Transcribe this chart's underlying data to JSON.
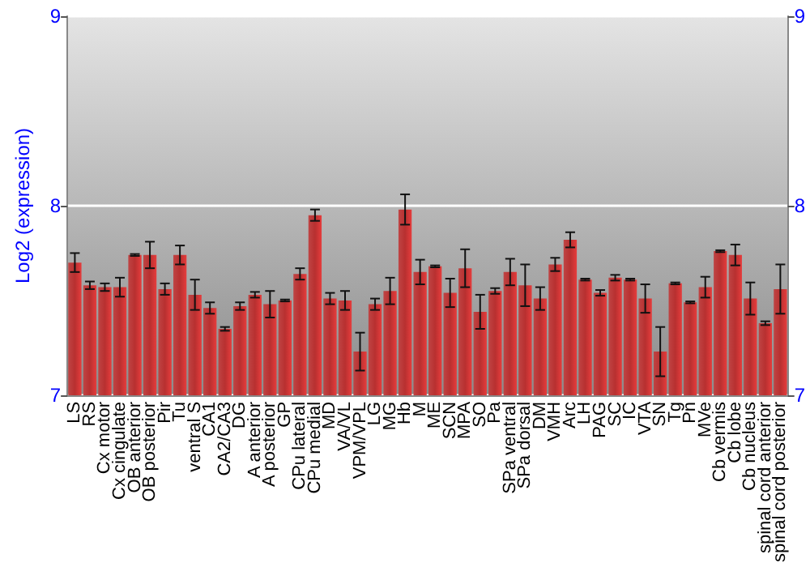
{
  "chart_data": {
    "type": "bar",
    "ylabel": "Log2 (expression)",
    "categories": [
      "LS",
      "RS",
      "Cx motor",
      "Cx cingulate",
      "OB anterior",
      "OB posterior",
      "Pir",
      "Tu",
      "ventral S",
      "CA1",
      "CA2/CA3",
      "DG",
      "A anterior",
      "A posterior",
      "GP",
      "CPu lateral",
      "CPu medial",
      "MD",
      "VA/VL",
      "VPM/VPL",
      "LG",
      "MG",
      "Hb",
      "M",
      "ME",
      "SCN",
      "MPA",
      "SO",
      "Pa",
      "SPa ventral",
      "SPa dorsal",
      "DM",
      "VMH",
      "Arc",
      "LH",
      "PAG",
      "SC",
      "IC",
      "VTA",
      "SN",
      "Tg",
      "Pn",
      "MVe",
      "Cb vermis",
      "Cb lobe",
      "Cb nucleus",
      "spinal cord anterior",
      "spinal cord posterior"
    ],
    "values": [
      7.7,
      7.58,
      7.57,
      7.57,
      7.74,
      7.74,
      7.56,
      7.74,
      7.53,
      7.46,
      7.35,
      7.47,
      7.53,
      7.48,
      7.5,
      7.64,
      7.95,
      7.51,
      7.5,
      7.23,
      7.48,
      7.55,
      7.98,
      7.65,
      7.68,
      7.54,
      7.67,
      7.44,
      7.55,
      7.65,
      7.58,
      7.51,
      7.69,
      7.82,
      7.61,
      7.54,
      7.62,
      7.61,
      7.51,
      7.23,
      7.59,
      7.49,
      7.57,
      7.76,
      7.74,
      7.51,
      7.38,
      7.56
    ],
    "errors": [
      0.05,
      0.02,
      0.02,
      0.05,
      0.005,
      0.07,
      0.03,
      0.05,
      0.08,
      0.03,
      0.01,
      0.02,
      0.015,
      0.07,
      0.005,
      0.03,
      0.03,
      0.03,
      0.05,
      0.1,
      0.03,
      0.07,
      0.08,
      0.065,
      0.005,
      0.075,
      0.1,
      0.09,
      0.015,
      0.07,
      0.11,
      0.06,
      0.035,
      0.04,
      0.005,
      0.015,
      0.015,
      0.005,
      0.075,
      0.13,
      0.005,
      0.005,
      0.055,
      0.005,
      0.055,
      0.085,
      0.01,
      0.13
    ],
    "color": "#b83030",
    "ylim": [
      7,
      9
    ],
    "yticks": [
      7,
      8,
      9
    ],
    "y2lim": [
      7,
      9
    ],
    "y2ticks": [
      7,
      8,
      9
    ],
    "grid": "y"
  }
}
